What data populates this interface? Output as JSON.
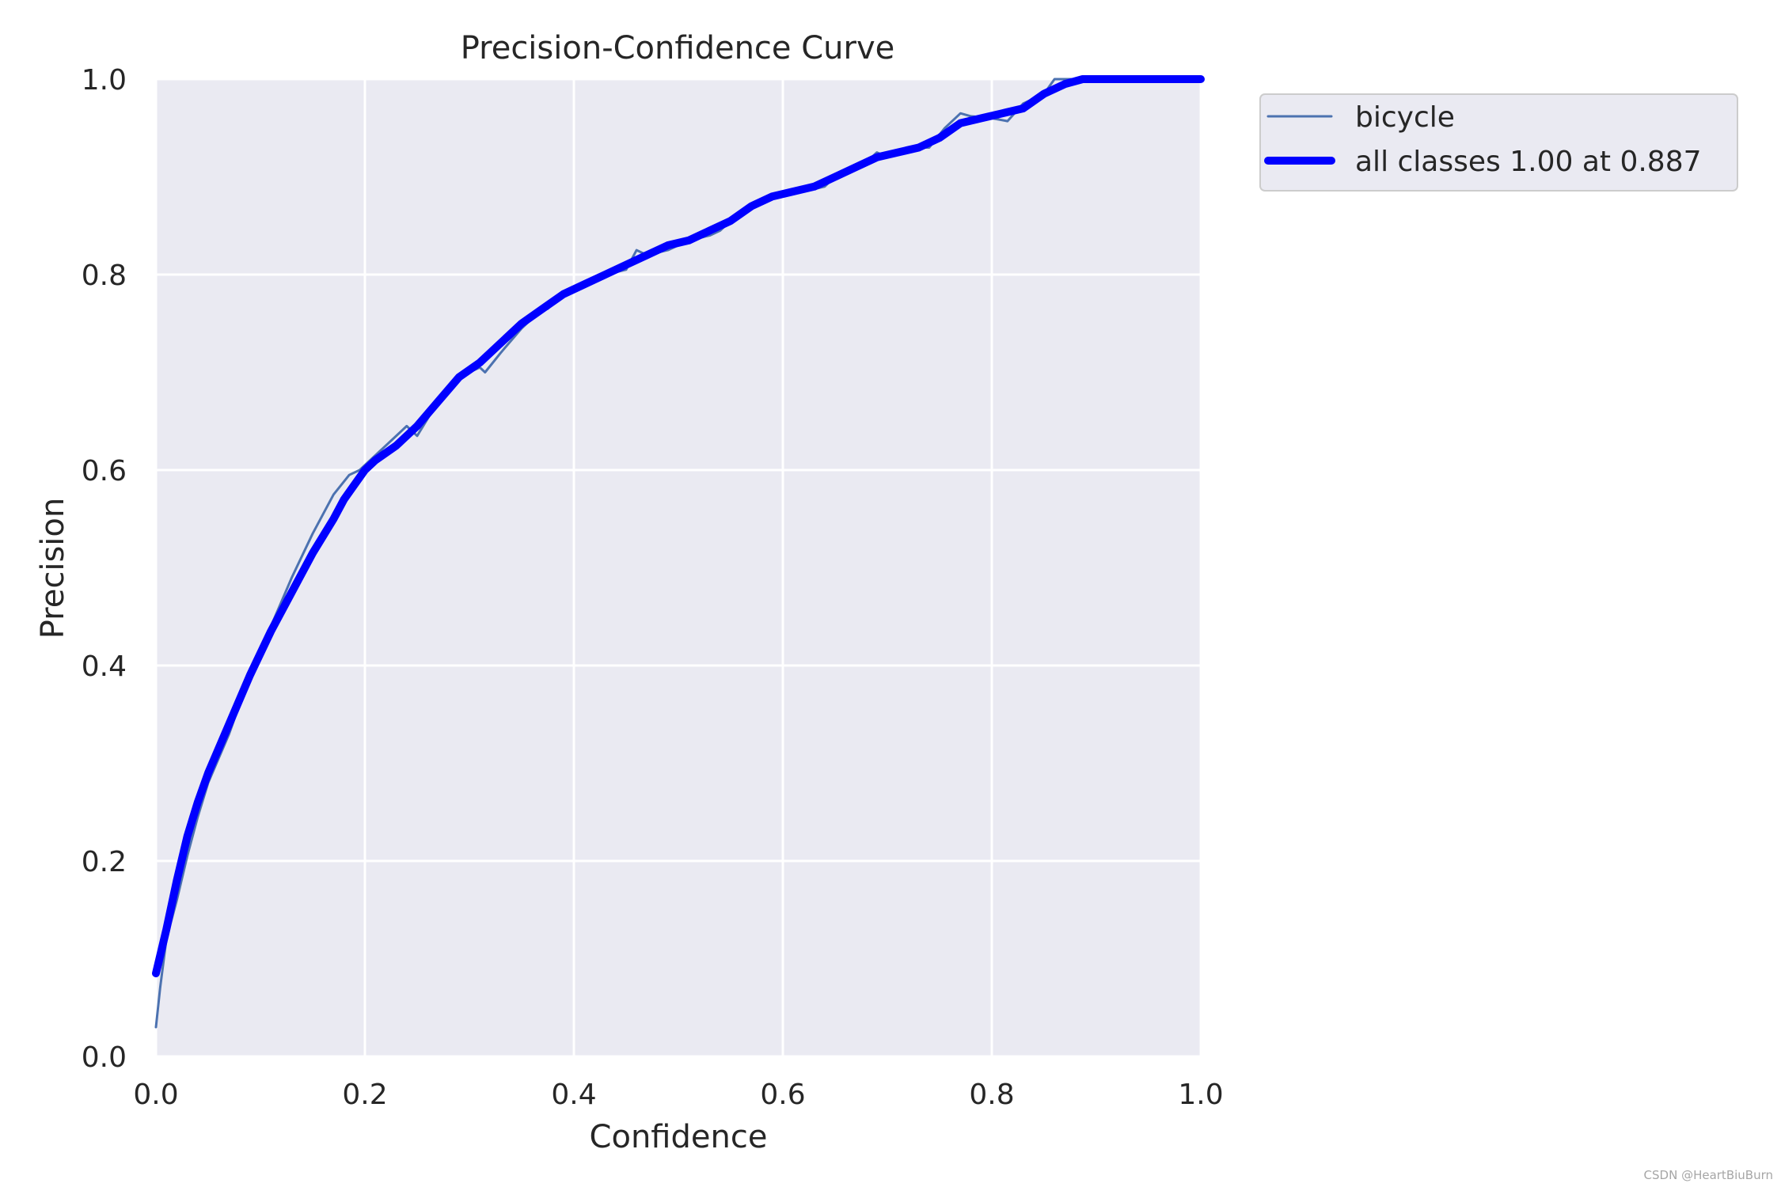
{
  "chart_data": {
    "type": "line",
    "title": "Precision-Confidence Curve",
    "xlabel": "Confidence",
    "ylabel": "Precision",
    "xlim": [
      0,
      1
    ],
    "ylim": [
      0,
      1
    ],
    "xticks": [
      "0.0",
      "0.2",
      "0.4",
      "0.6",
      "0.8",
      "1.0"
    ],
    "yticks": [
      "0.0",
      "0.2",
      "0.4",
      "0.6",
      "0.8",
      "1.0"
    ],
    "grid": true,
    "legend_position": "outside-top-right",
    "background_color": "#eaeaf2",
    "series": [
      {
        "name": "bicycle",
        "color": "#4c72b0",
        "style": "thin",
        "x": [
          0.0,
          0.004,
          0.01,
          0.02,
          0.03,
          0.04,
          0.05,
          0.07,
          0.09,
          0.11,
          0.13,
          0.15,
          0.17,
          0.185,
          0.195,
          0.205,
          0.22,
          0.24,
          0.25,
          0.27,
          0.29,
          0.31,
          0.315,
          0.33,
          0.35,
          0.37,
          0.375,
          0.39,
          0.41,
          0.43,
          0.45,
          0.46,
          0.47,
          0.49,
          0.51,
          0.53,
          0.54,
          0.56,
          0.58,
          0.6,
          0.62,
          0.64,
          0.655,
          0.665,
          0.68,
          0.69,
          0.7,
          0.72,
          0.74,
          0.755,
          0.77,
          0.78,
          0.8,
          0.815,
          0.83,
          0.84,
          0.85,
          0.86,
          0.87,
          0.88,
          0.9,
          0.95,
          1.0
        ],
        "y": [
          0.03,
          0.07,
          0.12,
          0.16,
          0.205,
          0.245,
          0.28,
          0.33,
          0.39,
          0.44,
          0.49,
          0.535,
          0.575,
          0.595,
          0.6,
          0.61,
          0.625,
          0.645,
          0.635,
          0.67,
          0.695,
          0.705,
          0.7,
          0.72,
          0.745,
          0.765,
          0.765,
          0.78,
          0.79,
          0.8,
          0.805,
          0.825,
          0.82,
          0.825,
          0.835,
          0.84,
          0.845,
          0.865,
          0.875,
          0.885,
          0.885,
          0.89,
          0.905,
          0.905,
          0.915,
          0.925,
          0.92,
          0.93,
          0.93,
          0.95,
          0.965,
          0.962,
          0.96,
          0.957,
          0.975,
          0.98,
          0.985,
          1.0,
          1.0,
          1.0,
          1.0,
          1.0,
          1.0
        ]
      },
      {
        "name": "all classes 1.00 at 0.887",
        "color": "#0000ff",
        "style": "thick",
        "x": [
          0.0,
          0.01,
          0.02,
          0.03,
          0.04,
          0.05,
          0.07,
          0.09,
          0.11,
          0.13,
          0.15,
          0.17,
          0.18,
          0.19,
          0.2,
          0.21,
          0.23,
          0.25,
          0.27,
          0.29,
          0.31,
          0.33,
          0.35,
          0.37,
          0.39,
          0.41,
          0.43,
          0.45,
          0.47,
          0.49,
          0.51,
          0.53,
          0.55,
          0.57,
          0.59,
          0.61,
          0.63,
          0.65,
          0.67,
          0.69,
          0.71,
          0.73,
          0.75,
          0.77,
          0.79,
          0.81,
          0.83,
          0.85,
          0.87,
          0.887,
          0.9,
          0.95,
          1.0
        ],
        "y": [
          0.085,
          0.13,
          0.18,
          0.225,
          0.26,
          0.29,
          0.34,
          0.39,
          0.435,
          0.475,
          0.515,
          0.55,
          0.57,
          0.585,
          0.6,
          0.61,
          0.625,
          0.645,
          0.67,
          0.695,
          0.71,
          0.73,
          0.75,
          0.765,
          0.78,
          0.79,
          0.8,
          0.81,
          0.82,
          0.83,
          0.835,
          0.845,
          0.855,
          0.87,
          0.88,
          0.885,
          0.89,
          0.9,
          0.91,
          0.92,
          0.925,
          0.93,
          0.94,
          0.955,
          0.96,
          0.965,
          0.97,
          0.985,
          0.995,
          1.0,
          1.0,
          1.0,
          1.0
        ]
      }
    ]
  },
  "watermark": "CSDN @HeartBiuBurn"
}
